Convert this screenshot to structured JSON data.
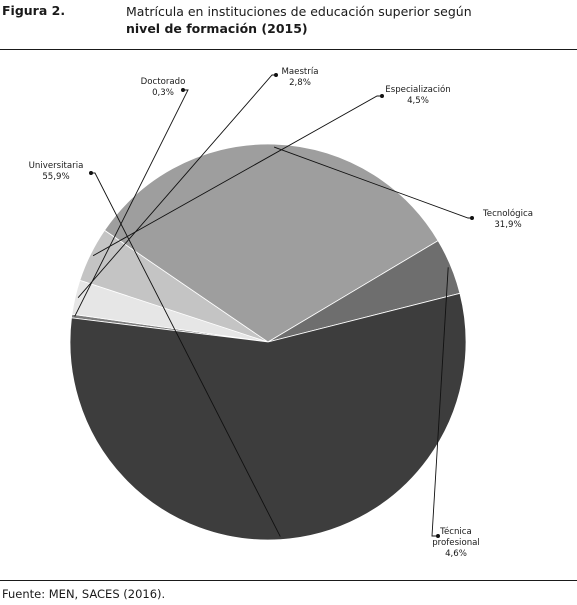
{
  "figure": {
    "label": "Figura 2.",
    "title_line1": "Matrícula en instituciones de educación superior según",
    "title_line2": "nivel de formación (2015)",
    "source": "Fuente: MEN, SACES (2016)."
  },
  "chart_data": {
    "type": "pie",
    "title": "Matrícula en instituciones de educación superior según nivel de formación (2015)",
    "slices": [
      {
        "label": "Doctorado",
        "value": 0.3,
        "value_label": "0,3%",
        "color": "#7d7d7d"
      },
      {
        "label": "Maestría",
        "value": 2.8,
        "value_label": "2,8%",
        "color": "#e6e6e6"
      },
      {
        "label": "Especialización",
        "value": 4.5,
        "value_label": "4,5%",
        "color": "#c4c4c4"
      },
      {
        "label": "Tecnológica",
        "value": 31.9,
        "value_label": "31,9%",
        "color": "#9e9e9e"
      },
      {
        "label": "Técnica profesional",
        "value": 4.6,
        "value_label": "4,6%",
        "color": "#6e6e6e"
      },
      {
        "label": "Universitaria",
        "value": 55.9,
        "value_label": "55,9%",
        "color": "#3d3d3d"
      }
    ],
    "legend": "none"
  }
}
